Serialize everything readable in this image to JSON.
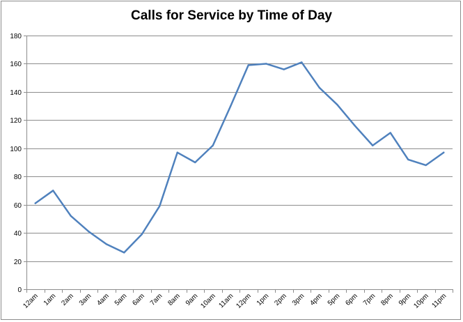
{
  "chart_data": {
    "type": "line",
    "title": "Calls for Service by Time of Day",
    "xlabel": "",
    "ylabel": "",
    "categories": [
      "12am",
      "1am",
      "2am",
      "3am",
      "4am",
      "5am",
      "6am",
      "7am",
      "8am",
      "9am",
      "10am",
      "11am",
      "12pm",
      "1pm",
      "2pm",
      "3pm",
      "4pm",
      "5pm",
      "6pm",
      "7pm",
      "8pm",
      "9pm",
      "10pm",
      "11pm"
    ],
    "series": [
      {
        "name": "",
        "values": [
          61,
          70,
          52,
          41,
          32,
          26,
          39,
          59,
          97,
          90,
          102,
          130,
          159,
          160,
          156,
          161,
          143,
          131,
          116,
          102,
          111,
          92,
          88,
          97
        ]
      }
    ],
    "ylim": [
      0,
      180
    ],
    "yticks": [
      0,
      20,
      40,
      60,
      80,
      100,
      120,
      140,
      160,
      180
    ],
    "grid": true,
    "legend": "none",
    "line_color": "#4f81bd",
    "grid_color": "#8c8c8c"
  }
}
